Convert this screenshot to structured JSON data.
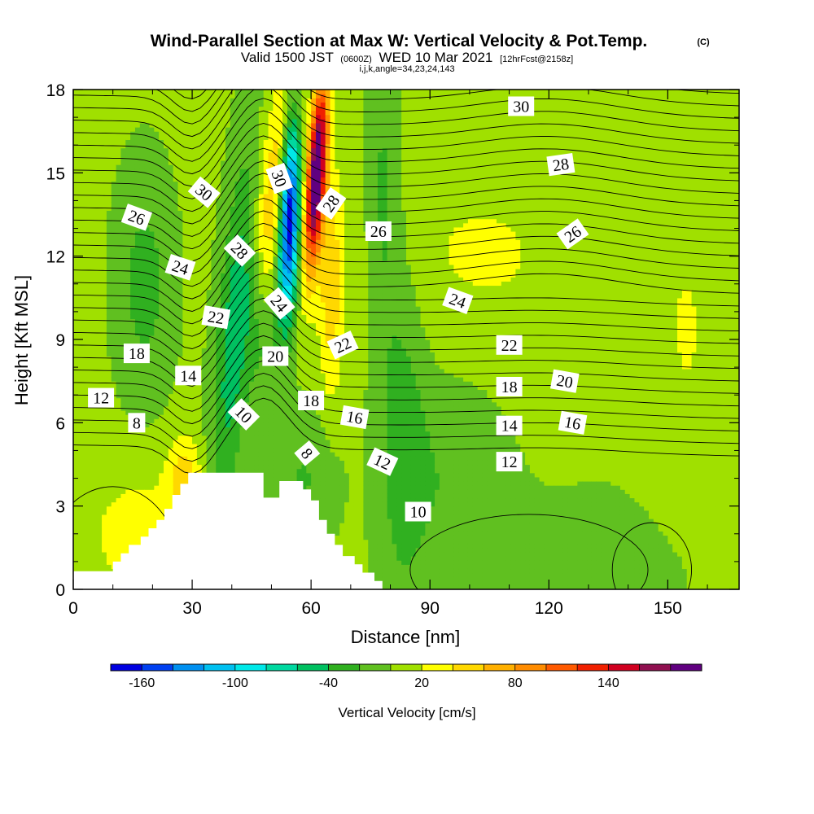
{
  "header": {
    "title": "Wind-Parallel Section at Max W: Vertical Velocity & Pot.Temp.",
    "title_mark": "(C)",
    "valid_prefix": "Valid 1500 JST",
    "valid_utc": "(0600Z)",
    "valid_date": "WED 10 Mar 2021",
    "forecast": "[12hrFcst@2158z]",
    "indices": "i,j,k,angle=34,23,24,143"
  },
  "chart_data": {
    "type": "heatmap",
    "xlabel": "Distance [nm]",
    "ylabel": "Height [Kft MSL]",
    "xlim": [
      0,
      168
    ],
    "ylim": [
      0,
      18
    ],
    "x_ticks": [
      0,
      30,
      60,
      90,
      120,
      150
    ],
    "y_ticks": [
      0,
      3,
      6,
      9,
      12,
      15,
      18
    ],
    "grid": false,
    "colorbar": {
      "label": "Vertical Velocity [cm/s]",
      "placement": "bottom",
      "ticks": [
        -160,
        -100,
        -40,
        20,
        80,
        140
      ],
      "bins": [
        {
          "min": -180,
          "max": -160,
          "color": "#0000e0"
        },
        {
          "min": -160,
          "max": -140,
          "color": "#0040f0"
        },
        {
          "min": -140,
          "max": -120,
          "color": "#0090f0"
        },
        {
          "min": -120,
          "max": -100,
          "color": "#00c0f0"
        },
        {
          "min": -100,
          "max": -80,
          "color": "#00e8e8"
        },
        {
          "min": -80,
          "max": -60,
          "color": "#00d8a0"
        },
        {
          "min": -60,
          "max": -40,
          "color": "#00c060"
        },
        {
          "min": -40,
          "max": -20,
          "color": "#30b020"
        },
        {
          "min": -20,
          "max": 0,
          "color": "#60c020"
        },
        {
          "min": 0,
          "max": 20,
          "color": "#a0e000"
        },
        {
          "min": 20,
          "max": 40,
          "color": "#ffff00"
        },
        {
          "min": 40,
          "max": 60,
          "color": "#ffd800"
        },
        {
          "min": 60,
          "max": 80,
          "color": "#ffb000"
        },
        {
          "min": 80,
          "max": 100,
          "color": "#ff8c00"
        },
        {
          "min": 100,
          "max": 120,
          "color": "#ff5a00"
        },
        {
          "min": 120,
          "max": 140,
          "color": "#f02000"
        },
        {
          "min": 140,
          "max": 160,
          "color": "#d00020"
        },
        {
          "min": 160,
          "max": 180,
          "color": "#901050"
        },
        {
          "min": 180,
          "max": 200,
          "color": "#600080"
        }
      ]
    },
    "contour_labels": [
      {
        "text": "30",
        "x": 113,
        "y": 17.4,
        "angle": 0
      },
      {
        "text": "28",
        "x": 123,
        "y": 15.3,
        "angle": -8
      },
      {
        "text": "26",
        "x": 126,
        "y": 12.8,
        "angle": -35
      },
      {
        "text": "26",
        "x": 77,
        "y": 12.9,
        "angle": 0
      },
      {
        "text": "28",
        "x": 65,
        "y": 13.9,
        "angle": -55
      },
      {
        "text": "30",
        "x": 52,
        "y": 14.8,
        "angle": 70
      },
      {
        "text": "30",
        "x": 33,
        "y": 14.3,
        "angle": 40
      },
      {
        "text": "26",
        "x": 16,
        "y": 13.4,
        "angle": 20
      },
      {
        "text": "28",
        "x": 42,
        "y": 12.2,
        "angle": 45
      },
      {
        "text": "24",
        "x": 27,
        "y": 11.6,
        "angle": 18
      },
      {
        "text": "24",
        "x": 52,
        "y": 10.3,
        "angle": 50
      },
      {
        "text": "24",
        "x": 97,
        "y": 10.4,
        "angle": 20
      },
      {
        "text": "22",
        "x": 36,
        "y": 9.8,
        "angle": 10
      },
      {
        "text": "22",
        "x": 68,
        "y": 8.8,
        "angle": -25
      },
      {
        "text": "22",
        "x": 110,
        "y": 8.8,
        "angle": 0
      },
      {
        "text": "20",
        "x": 51,
        "y": 8.4,
        "angle": 0
      },
      {
        "text": "20",
        "x": 124,
        "y": 7.5,
        "angle": 10
      },
      {
        "text": "18",
        "x": 16,
        "y": 8.5,
        "angle": 0
      },
      {
        "text": "18",
        "x": 110,
        "y": 7.3,
        "angle": 0
      },
      {
        "text": "18",
        "x": 60,
        "y": 6.8,
        "angle": 0
      },
      {
        "text": "14",
        "x": 29,
        "y": 7.7,
        "angle": 0
      },
      {
        "text": "14",
        "x": 110,
        "y": 5.9,
        "angle": 0
      },
      {
        "text": "16",
        "x": 71,
        "y": 6.2,
        "angle": 10
      },
      {
        "text": "16",
        "x": 126,
        "y": 6.0,
        "angle": 10
      },
      {
        "text": "12",
        "x": 7,
        "y": 6.9,
        "angle": 0
      },
      {
        "text": "12",
        "x": 78,
        "y": 4.6,
        "angle": 25
      },
      {
        "text": "12",
        "x": 110,
        "y": 4.6,
        "angle": 0
      },
      {
        "text": "10",
        "x": 43,
        "y": 6.3,
        "angle": 45
      },
      {
        "text": "8",
        "x": 16,
        "y": 6.0,
        "angle": 0
      },
      {
        "text": "8",
        "x": 59,
        "y": 4.9,
        "angle": 50
      },
      {
        "text": "10",
        "x": 87,
        "y": 2.8,
        "angle": 0
      }
    ]
  }
}
